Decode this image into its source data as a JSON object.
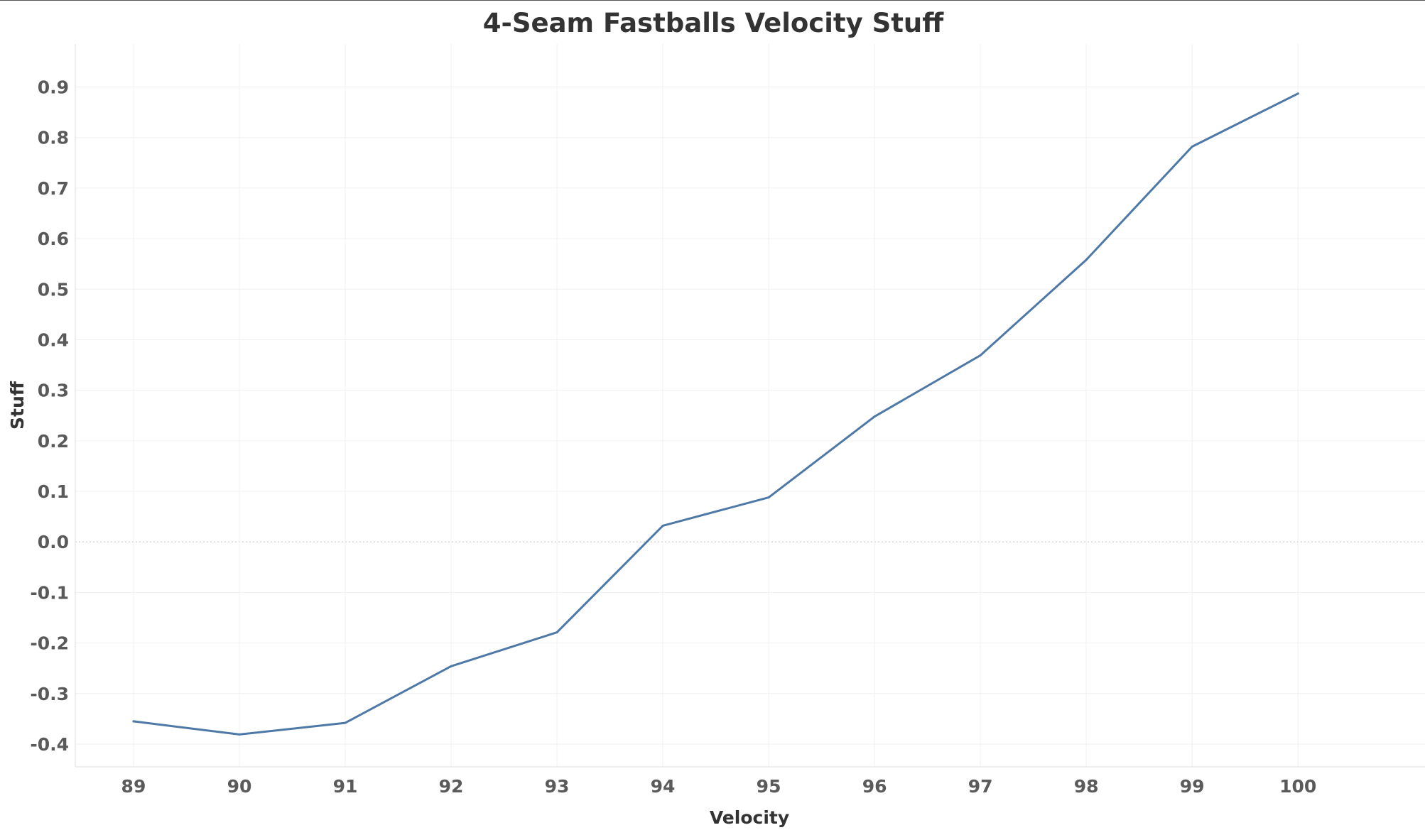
{
  "chart_data": {
    "type": "line",
    "title": "4-Seam Fastballs Velocity Stuff",
    "xlabel": "Velocity",
    "ylabel": "Stuff",
    "x": [
      89,
      90,
      91,
      92,
      93,
      94,
      95,
      96,
      97,
      98,
      99,
      100
    ],
    "series": [
      {
        "values": [
          -0.355,
          -0.381,
          -0.358,
          -0.246,
          -0.179,
          0.032,
          0.088,
          0.248,
          0.369,
          0.558,
          0.782,
          0.887
        ]
      }
    ],
    "xticks": [
      "89",
      "90",
      "91",
      "92",
      "93",
      "94",
      "95",
      "96",
      "97",
      "98",
      "99",
      "100"
    ],
    "yticks": [
      "0.9",
      "0.8",
      "0.7",
      "0.6",
      "0.5",
      "0.4",
      "0.3",
      "0.2",
      "0.1",
      "0.0",
      "-0.1",
      "-0.2",
      "-0.3",
      "-0.4"
    ],
    "xlim": [
      88.45,
      101.2
    ],
    "ylim": [
      -0.445,
      0.985
    ],
    "grid": true,
    "legend": "none",
    "colors": {
      "line": "#4e79a7",
      "grid": "#f0f0f0",
      "zero_line": "#d4d4d4",
      "axis": "#e8e8e8"
    }
  }
}
